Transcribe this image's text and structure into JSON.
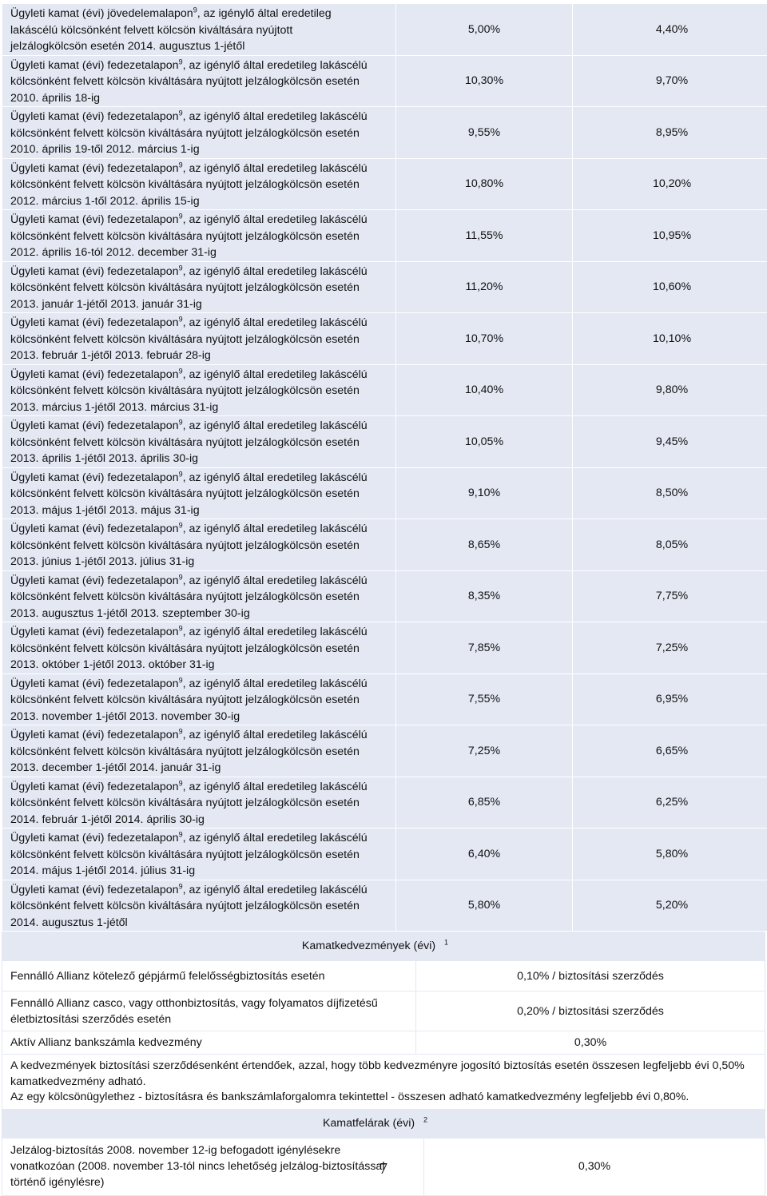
{
  "rates": [
    {
      "line1": "Ügyleti kamat (évi) jövedelemalapon",
      "sup": "9",
      "line1b": ", az igénylő által eredetileg",
      "line2": "lakáscélú kölcsönként felvett kölcsön kiváltására nyújtott",
      "line3": "jelzálogkölcsön esetén 2014. augusztus 1-jétől",
      "v1": "5,00%",
      "v2": "4,40%"
    },
    {
      "line1": "Ügyleti kamat (évi) fedezetalapon",
      "sup": "9",
      "line1b": ", az igénylő által eredetileg lakáscélú",
      "line2": "kölcsönként felvett kölcsön kiváltására nyújtott jelzálogkölcsön esetén",
      "line3": "2010. április 18-ig",
      "v1": "10,30%",
      "v2": "9,70%"
    },
    {
      "line1": "Ügyleti kamat (évi) fedezetalapon",
      "sup": "9",
      "line1b": ", az igénylő által eredetileg lakáscélú",
      "line2": "kölcsönként felvett kölcsön kiváltására nyújtott jelzálogkölcsön esetén",
      "line3": "2010. április 19-től 2012. március 1-ig",
      "v1": "9,55%",
      "v2": "8,95%"
    },
    {
      "line1": "Ügyleti kamat (évi) fedezetalapon",
      "sup": "9",
      "line1b": ", az igénylő által eredetileg lakáscélú",
      "line2": "kölcsönként felvett kölcsön kiváltására nyújtott jelzálogkölcsön esetén",
      "line3": "2012. március 1-től 2012. április 15-ig",
      "v1": "10,80%",
      "v2": "10,20%"
    },
    {
      "line1": "Ügyleti kamat (évi) fedezetalapon",
      "sup": "9",
      "line1b": ", az igénylő által eredetileg lakáscélú",
      "line2": "kölcsönként felvett kölcsön kiváltására nyújtott jelzálogkölcsön esetén",
      "line3": "2012. április 16-tól 2012. december 31-ig",
      "v1": "11,55%",
      "v2": "10,95%"
    },
    {
      "line1": "Ügyleti kamat (évi) fedezetalapon",
      "sup": "9",
      "line1b": ", az igénylő által eredetileg lakáscélú",
      "line2": "kölcsönként felvett kölcsön kiváltására nyújtott jelzálogkölcsön esetén",
      "line3": "2013. január 1-jétől 2013. január 31-ig",
      "v1": "11,20%",
      "v2": "10,60%"
    },
    {
      "line1": "Ügyleti kamat (évi) fedezetalapon",
      "sup": "9",
      "line1b": ", az igénylő által eredetileg lakáscélú",
      "line2": "kölcsönként felvett kölcsön kiváltására nyújtott jelzálogkölcsön esetén",
      "line3": "2013. február 1-jétől 2013. február 28-ig",
      "v1": "10,70%",
      "v2": "10,10%"
    },
    {
      "line1": "Ügyleti kamat (évi) fedezetalapon",
      "sup": "9",
      "line1b": ", az igénylő által eredetileg lakáscélú",
      "line2": "kölcsönként felvett kölcsön kiváltására nyújtott jelzálogkölcsön esetén",
      "line3": "2013. március 1-jétől 2013. március 31-ig",
      "v1": "10,40%",
      "v2": "9,80%"
    },
    {
      "line1": "Ügyleti kamat (évi) fedezetalapon",
      "sup": "9",
      "line1b": ", az igénylő által eredetileg lakáscélú",
      "line2": "kölcsönként felvett kölcsön kiváltására nyújtott jelzálogkölcsön esetén",
      "line3": "2013. április 1-jétől 2013. április 30-ig",
      "v1": "10,05%",
      "v2": "9,45%"
    },
    {
      "line1": "Ügyleti kamat (évi) fedezetalapon",
      "sup": "9",
      "line1b": ", az igénylő által eredetileg lakáscélú",
      "line2": "kölcsönként felvett kölcsön kiváltására nyújtott jelzálogkölcsön esetén",
      "line3": "2013. május 1-jétől 2013. május 31-ig",
      "v1": "9,10%",
      "v2": "8,50%"
    },
    {
      "line1": "Ügyleti kamat (évi) fedezetalapon",
      "sup": "9",
      "line1b": ", az igénylő által eredetileg lakáscélú",
      "line2": "kölcsönként felvett kölcsön kiváltására nyújtott jelzálogkölcsön esetén",
      "line3": "2013. június 1-jétől 2013. július 31-ig",
      "v1": "8,65%",
      "v2": "8,05%"
    },
    {
      "line1": "Ügyleti kamat (évi) fedezetalapon",
      "sup": "9",
      "line1b": ", az igénylő által eredetileg lakáscélú",
      "line2": "kölcsönként felvett kölcsön kiváltására nyújtott jelzálogkölcsön esetén",
      "line3": "2013. augusztus 1-jétől 2013. szeptember 30-ig",
      "v1": "8,35%",
      "v2": "7,75%"
    },
    {
      "line1": "Ügyleti kamat (évi) fedezetalapon",
      "sup": "9",
      "line1b": ", az igénylő által eredetileg lakáscélú",
      "line2": "kölcsönként felvett kölcsön kiváltására nyújtott jelzálogkölcsön esetén",
      "line3": "2013. október 1-jétől 2013. október 31-ig",
      "v1": "7,85%",
      "v2": "7,25%"
    },
    {
      "line1": "Ügyleti kamat (évi) fedezetalapon",
      "sup": "9",
      "line1b": ", az igénylő által eredetileg lakáscélú",
      "line2": "kölcsönként felvett kölcsön kiváltására nyújtott jelzálogkölcsön esetén",
      "line3": "2013. november 1-jétől 2013. november 30-ig",
      "v1": "7,55%",
      "v2": "6,95%"
    },
    {
      "line1": "Ügyleti kamat (évi) fedezetalapon",
      "sup": "9",
      "line1b": ", az igénylő által eredetileg lakáscélú",
      "line2": "kölcsönként felvett kölcsön kiváltására nyújtott jelzálogkölcsön esetén",
      "line3": "2013. december 1-jétől 2014. január 31-ig",
      "v1": "7,25%",
      "v2": "6,65%"
    },
    {
      "line1": "Ügyleti kamat (évi) fedezetalapon",
      "sup": "9",
      "line1b": ", az igénylő által eredetileg lakáscélú",
      "line2": "kölcsönként felvett kölcsön kiváltására nyújtott jelzálogkölcsön esetén",
      "line3": "2014. február 1-jétől 2014. április 30-ig",
      "v1": "6,85%",
      "v2": "6,25%"
    },
    {
      "line1": "Ügyleti kamat (évi) fedezetalapon",
      "sup": "9",
      "line1b": ", az igénylő által eredetileg lakáscélú",
      "line2": "kölcsönként felvett kölcsön kiváltására nyújtott jelzálogkölcsön esetén",
      "line3": "2014. május 1-jétől 2014. július 31-ig",
      "v1": "6,40%",
      "v2": "5,80%"
    },
    {
      "line1": "Ügyleti kamat (évi) fedezetalapon",
      "sup": "9",
      "line1b": ", az igénylő által eredetileg lakáscélú",
      "line2": "kölcsönként felvett kölcsön kiváltására nyújtott jelzálogkölcsön esetén",
      "line3": "2014. augusztus 1-jétől",
      "v1": "5,80%",
      "v2": "5,20%"
    }
  ],
  "discounts": {
    "title": "Kamatkedvezmények (évi)",
    "title_sup": "1",
    "rows": [
      {
        "label": "Fennálló Allianz kötelező gépjármű felelősségbiztosítás esetén",
        "value": "0,10% / biztosítási szerződés"
      },
      {
        "label": "Fennálló Allianz casco, vagy otthonbiztosítás, vagy folyamatos díjfizetésű életbiztosítási szerződés esetén",
        "value": "0,20% / biztosítási szerződés"
      },
      {
        "label": "Aktív Allianz bankszámla kedvezmény",
        "value": "0,30%"
      }
    ],
    "note1": "A kedvezmények biztosítási szerződésenként értendőek, azzal, hogy több kedvezményre jogosító biztosítás esetén összesen legfeljebb évi 0,50% kamatkedvezmény adható.",
    "note2": "Az egy kölcsönügylethez - biztosításra és bankszámlaforgalomra tekintettel - összesen adható kamatkedvezmény legfeljebb évi 0,80%."
  },
  "surcharges": {
    "title": "Kamatfelárak (évi)",
    "title_sup": "2",
    "rows": [
      {
        "label": "Jelzálog-biztosítás 2008. november 12-ig befogadott igénylésekre vonatkozóan (2008. november 13-tól nincs lehetőség jelzálog-biztosítással történő igénylésre)",
        "value": "0,30%"
      }
    ]
  },
  "page_number": "7"
}
